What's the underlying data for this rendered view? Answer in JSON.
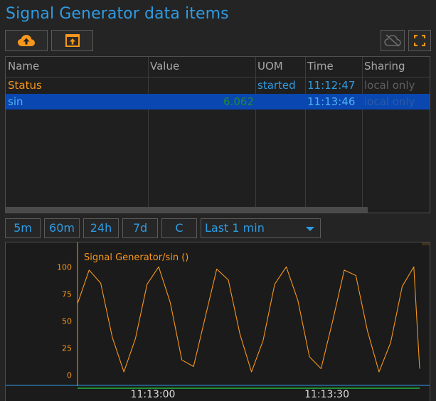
{
  "title": "Signal Generator data items",
  "icons": {
    "upload": "cloud-upload-icon",
    "export": "export-icon",
    "cloud_off": "cloud-off-icon",
    "fullscreen": "fullscreen-icon"
  },
  "colors": {
    "accent": "#2f9be3",
    "orange": "#f7971c",
    "selected_row": "#0a47b0",
    "value_green": "#1e8a3a",
    "muted": "#5f5f5f"
  },
  "table": {
    "columns": [
      "Name",
      "Value",
      "UOM",
      "Time",
      "Sharing"
    ],
    "rows": [
      {
        "name": "Status",
        "value": "",
        "uom": "started",
        "time": "11:12:47",
        "sharing": "local only"
      },
      {
        "name": "sin",
        "value": "6.062",
        "uom": "",
        "time": "11:13:46",
        "sharing": "local only",
        "selected": true
      }
    ]
  },
  "range_buttons": [
    "5m",
    "60m",
    "24h",
    "7d",
    "C"
  ],
  "range_select": {
    "selected": "Last 1 min"
  },
  "chart_data": {
    "type": "line",
    "series": [
      {
        "name": "Signal Generator/sin ()",
        "color": "#f7971c",
        "x": [
          "11:12:47",
          "11:12:49",
          "11:12:51",
          "11:12:53",
          "11:12:55",
          "11:12:57",
          "11:12:59",
          "11:13:01",
          "11:13:03",
          "11:13:05",
          "11:13:07",
          "11:13:09",
          "11:13:11",
          "11:13:13",
          "11:13:15",
          "11:13:17",
          "11:13:19",
          "11:13:21",
          "11:13:23",
          "11:13:25",
          "11:13:27",
          "11:13:29",
          "11:13:31",
          "11:13:33",
          "11:13:35",
          "11:13:37",
          "11:13:39",
          "11:13:41",
          "11:13:43",
          "11:13:45",
          "11:13:46"
        ],
        "y": [
          66,
          97,
          85,
          35,
          3,
          34,
          84,
          100,
          67,
          14,
          8,
          53,
          98,
          88,
          38,
          3,
          32,
          84,
          100,
          69,
          17,
          6,
          50,
          97,
          92,
          41,
          3,
          30,
          82,
          100,
          6
        ]
      },
      {
        "name": "",
        "color": "#1f8f32",
        "x": [
          "11:12:47",
          "11:13:46"
        ],
        "y": [
          -12,
          -12
        ]
      }
    ],
    "ylim": [
      -14,
      114
    ],
    "yticks": [
      0,
      25,
      50,
      75,
      100
    ],
    "xticks": [
      "11:13:00",
      "11:13:30"
    ],
    "xlabel": "",
    "ylabel": "",
    "legend": "top-left"
  }
}
